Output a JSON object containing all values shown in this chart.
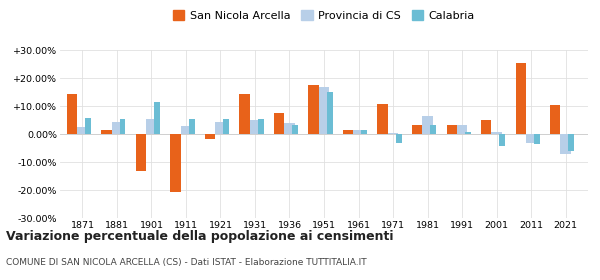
{
  "years": [
    1871,
    1881,
    1901,
    1911,
    1921,
    1931,
    1936,
    1951,
    1961,
    1971,
    1981,
    1991,
    2001,
    2011,
    2021
  ],
  "san_nicola": [
    14.5,
    1.5,
    -13.0,
    -20.5,
    -1.5,
    14.5,
    7.5,
    17.5,
    1.5,
    11.0,
    3.5,
    3.5,
    5.0,
    25.5,
    10.5
  ],
  "provincia_cs": [
    2.5,
    4.5,
    5.5,
    3.0,
    4.5,
    5.0,
    4.0,
    17.0,
    1.5,
    0.5,
    6.5,
    3.5,
    1.0,
    -3.0,
    -7.0
  ],
  "calabria": [
    6.0,
    5.5,
    11.5,
    5.5,
    5.5,
    5.5,
    3.5,
    15.0,
    1.5,
    -3.0,
    3.5,
    1.0,
    -4.0,
    -3.5,
    -6.0
  ],
  "color_san_nicola": "#e8621a",
  "color_provincia": "#b8cfe8",
  "color_calabria": "#6bbdd4",
  "title": "Variazione percentuale della popolazione ai censimenti",
  "subtitle": "COMUNE DI SAN NICOLA ARCELLA (CS) - Dati ISTAT - Elaborazione TUTTITALIA.IT",
  "ylim": [
    -30,
    30
  ],
  "yticks": [
    -30,
    -20,
    -10,
    0,
    10,
    20,
    30
  ],
  "ytick_labels": [
    "-30.00%",
    "-20.00%",
    "-10.00%",
    "0.00%",
    "+10.00%",
    "+20.00%",
    "+30.00%"
  ],
  "bg_color": "#ffffff",
  "grid_color": "#e0e0e0"
}
